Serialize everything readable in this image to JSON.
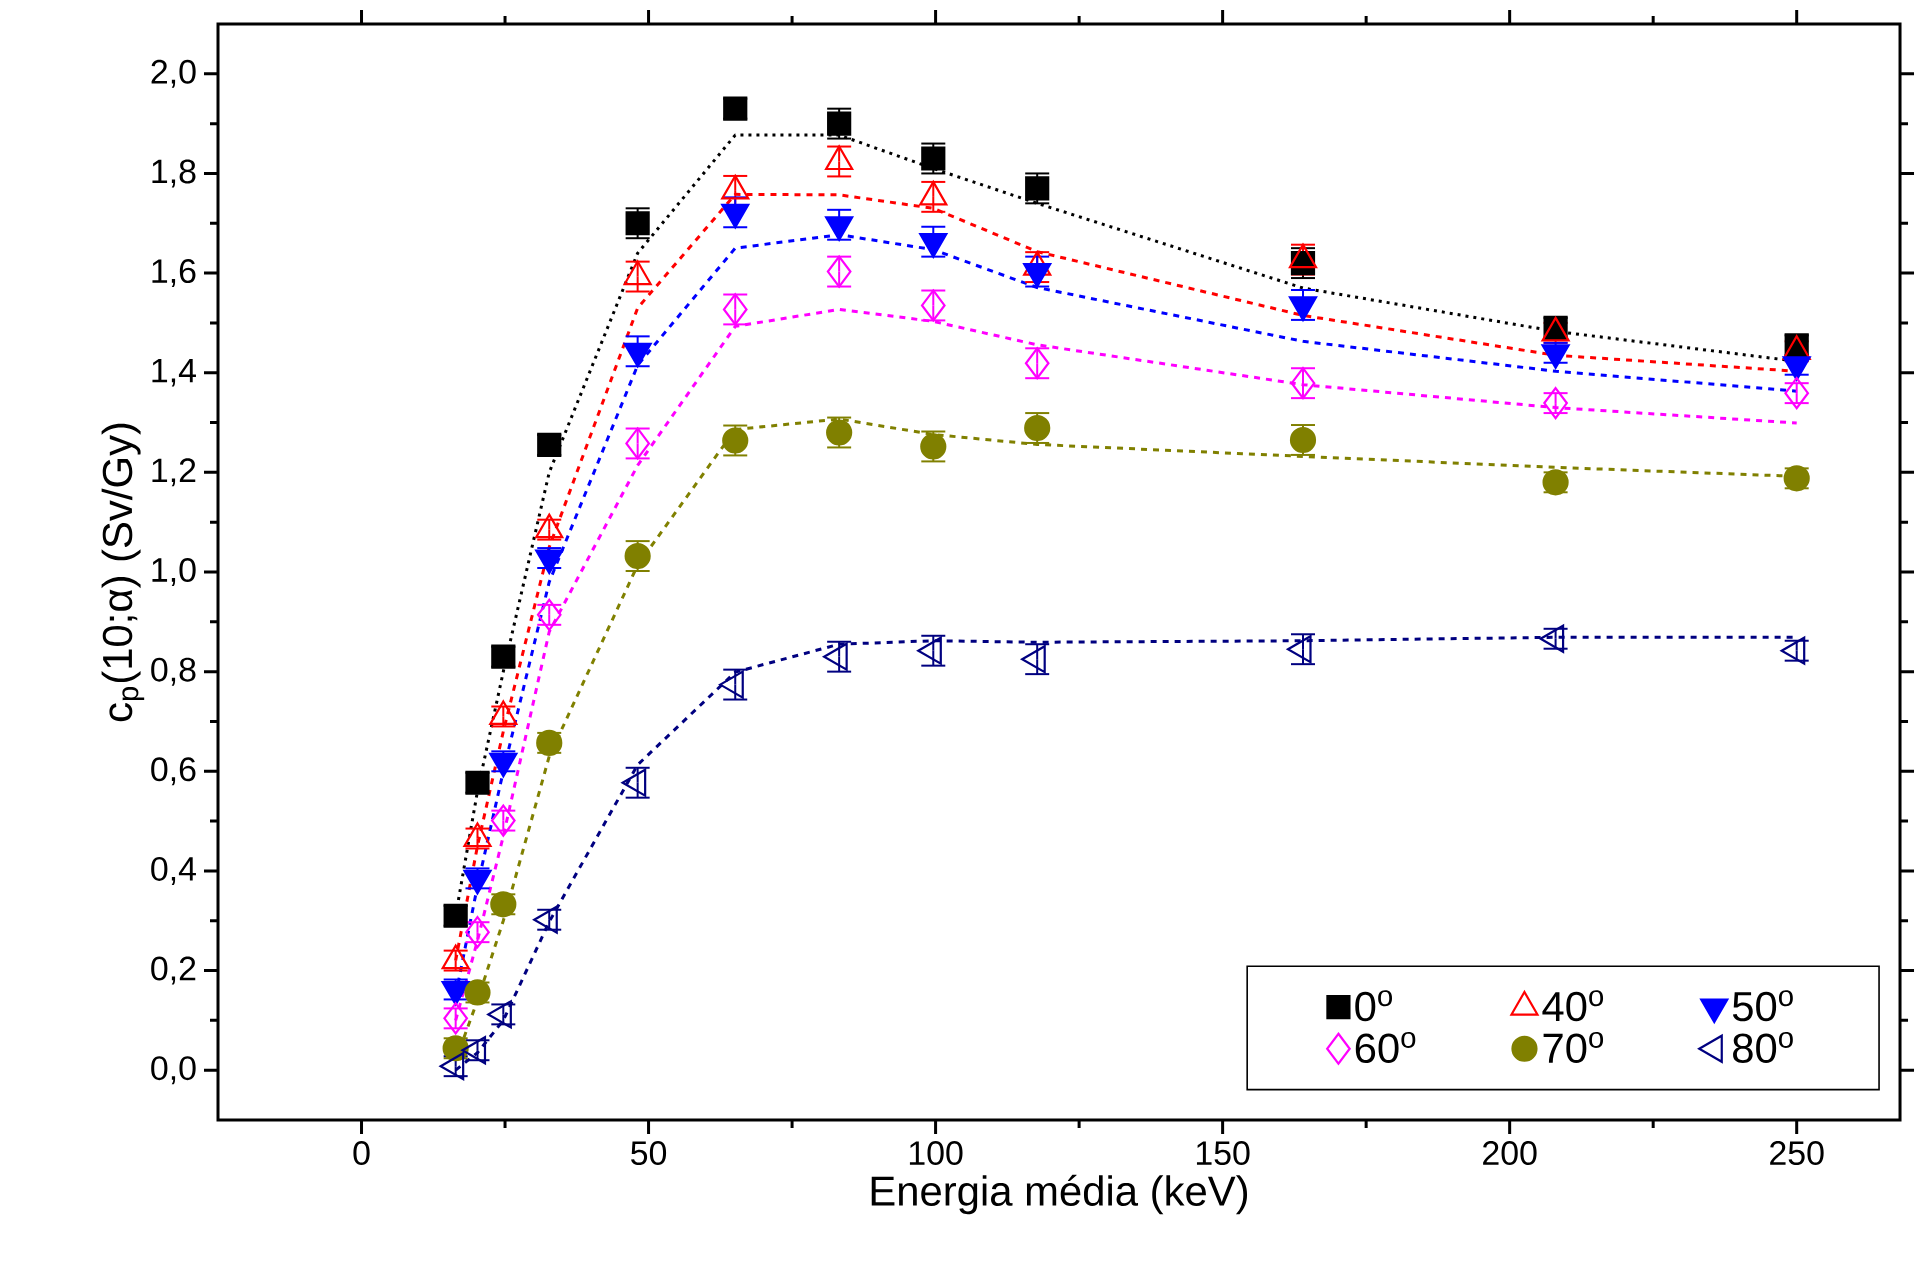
{
  "chart_data": {
    "type": "scatter",
    "xlabel": "Energia média (keV)",
    "ylabel": "c$_{p}$(10;α) (Sv/Gy)",
    "xlim": [
      -25,
      268
    ],
    "ylim": [
      -0.1,
      2.1
    ],
    "xticks": [
      0,
      50,
      100,
      150,
      200,
      250
    ],
    "yticks": [
      {
        "value": 0,
        "label": "0,0"
      },
      {
        "value": 0.2,
        "label": "0,2"
      },
      {
        "value": 0.4,
        "label": "0,4"
      },
      {
        "value": 0.6,
        "label": "0,6"
      },
      {
        "value": 0.8,
        "label": "0,8"
      },
      {
        "value": 1.0,
        "label": "1,0"
      },
      {
        "value": 1.2,
        "label": "1,2"
      },
      {
        "value": 1.4,
        "label": "1,4"
      },
      {
        "value": 1.6,
        "label": "1,6"
      },
      {
        "value": 1.8,
        "label": "1,8"
      },
      {
        "value": 2.0,
        "label": "2,0"
      }
    ],
    "legend": "bottom right",
    "x": [
      16.4,
      20.2,
      24.7,
      32.7,
      48.1,
      65.1,
      83.2,
      99.6,
      117.7,
      164,
      208,
      250
    ],
    "series": [
      {
        "type": "line",
        "color": "#000000",
        "line_style": "dotted",
        "marker": "none",
        "x": [
          16.4,
          20.2,
          24.7,
          32.7,
          48.1,
          65.1,
          83.2,
          99.6,
          117.7,
          164,
          208,
          250
        ],
        "values": [
          0.31,
          0.56,
          0.8,
          1.2,
          1.64,
          1.877,
          1.877,
          1.81,
          1.74,
          1.57,
          1.483,
          1.423
        ]
      },
      {
        "type": "line",
        "color": "#ff0000",
        "line_style": "dashed",
        "marker": "none",
        "x": [
          16.4,
          20.2,
          24.7,
          32.7,
          48.1,
          65.1,
          83.2,
          99.6,
          117.7,
          164,
          208,
          250
        ],
        "values": [
          0.22,
          0.45,
          0.68,
          1.05,
          1.53,
          1.758,
          1.757,
          1.73,
          1.643,
          1.515,
          1.435,
          1.403
        ]
      },
      {
        "type": "line",
        "color": "#0000ff",
        "line_style": "dashed",
        "marker": "none",
        "x": [
          16.4,
          20.2,
          24.7,
          32.7,
          48.1,
          65.1,
          83.2,
          99.6,
          117.7,
          164,
          208,
          250
        ],
        "values": [
          0.15,
          0.37,
          0.6,
          0.98,
          1.415,
          1.65,
          1.677,
          1.647,
          1.571,
          1.463,
          1.403,
          1.363
        ]
      },
      {
        "type": "line",
        "color": "#ff00ff",
        "line_style": "dashed",
        "marker": "none",
        "x": [
          16.4,
          20.2,
          24.7,
          32.7,
          48.1,
          65.1,
          83.2,
          99.6,
          117.7,
          164,
          208,
          250
        ],
        "values": [
          0.1,
          0.26,
          0.47,
          0.88,
          1.214,
          1.493,
          1.527,
          1.503,
          1.456,
          1.376,
          1.33,
          1.299
        ]
      },
      {
        "type": "line",
        "color": "#808000",
        "line_style": "dashed",
        "marker": "none",
        "x": [
          16.4,
          20.2,
          24.7,
          32.7,
          48.1,
          65.1,
          83.2,
          99.6,
          117.7,
          164,
          208,
          250
        ],
        "values": [
          0.02,
          0.14,
          0.3,
          0.63,
          1.014,
          1.286,
          1.307,
          1.276,
          1.256,
          1.232,
          1.21,
          1.192
        ]
      },
      {
        "type": "line",
        "color": "#000080",
        "line_style": "dashed",
        "marker": "none",
        "x": [
          16.4,
          20.2,
          24.7,
          32.7,
          48.1,
          65.1,
          83.2,
          99.6,
          117.7,
          164,
          208,
          250
        ],
        "values": [
          0.0,
          0.035,
          0.1,
          0.298,
          0.613,
          0.799,
          0.855,
          0.862,
          0.859,
          0.862,
          0.869,
          0.869
        ]
      },
      {
        "type": "scatter",
        "name": "0$^{o}$",
        "color": "#000000",
        "marker": "square",
        "values": [
          0.31,
          0.577,
          0.83,
          1.255,
          1.7,
          1.93,
          1.9,
          1.83,
          1.77,
          1.62,
          1.49,
          1.455
        ],
        "errors": [
          0.02,
          0.02,
          0.02,
          0.02,
          0.03,
          0.02,
          0.03,
          0.03,
          0.03,
          0.03,
          0.02,
          0.02
        ]
      },
      {
        "type": "scatter",
        "name": "40$^{o}$",
        "color": "#ff0000",
        "marker": "triangle",
        "values": [
          0.22,
          0.465,
          0.71,
          1.085,
          1.593,
          1.765,
          1.824,
          1.753,
          1.612,
          1.627,
          1.48,
          1.443
        ],
        "errors": [
          0.02,
          0.02,
          0.02,
          0.02,
          0.03,
          0.03,
          0.03,
          0.03,
          0.03,
          0.03,
          0.02,
          0.02
        ]
      },
      {
        "type": "scatter",
        "name": "50$^{o}$",
        "color": "#0000ff",
        "marker": "triangle-down",
        "values": [
          0.162,
          0.385,
          0.62,
          1.028,
          1.443,
          1.722,
          1.697,
          1.663,
          1.603,
          1.536,
          1.44,
          1.416
        ],
        "errors": [
          0.02,
          0.02,
          0.02,
          0.02,
          0.03,
          0.03,
          0.03,
          0.03,
          0.03,
          0.03,
          0.02,
          0.02
        ]
      },
      {
        "type": "scatter",
        "name": "60$^{o}$",
        "color": "#ff00ff",
        "marker": "diamond",
        "values": [
          0.104,
          0.277,
          0.501,
          0.914,
          1.258,
          1.527,
          1.603,
          1.535,
          1.419,
          1.379,
          1.339,
          1.359
        ],
        "errors": [
          0.02,
          0.02,
          0.02,
          0.02,
          0.03,
          0.03,
          0.03,
          0.03,
          0.03,
          0.03,
          0.02,
          0.02
        ]
      },
      {
        "type": "scatter",
        "name": "70$^{o}$",
        "color": "#808000",
        "marker": "circle",
        "values": [
          0.044,
          0.156,
          0.333,
          0.657,
          1.032,
          1.264,
          1.28,
          1.252,
          1.289,
          1.265,
          1.18,
          1.188
        ],
        "errors": [
          0.02,
          0.02,
          0.02,
          0.02,
          0.03,
          0.03,
          0.03,
          0.03,
          0.03,
          0.03,
          0.02,
          0.02
        ]
      },
      {
        "type": "scatter",
        "name": "80$^{o}$",
        "color": "#000080",
        "marker": "triangle-left",
        "values": [
          0.008,
          0.04,
          0.112,
          0.302,
          0.577,
          0.774,
          0.83,
          0.842,
          0.825,
          0.845,
          0.866,
          0.842
        ],
        "errors": [
          0.02,
          0.02,
          0.02,
          0.02,
          0.03,
          0.03,
          0.03,
          0.03,
          0.03,
          0.03,
          0.02,
          0.02
        ]
      }
    ]
  }
}
